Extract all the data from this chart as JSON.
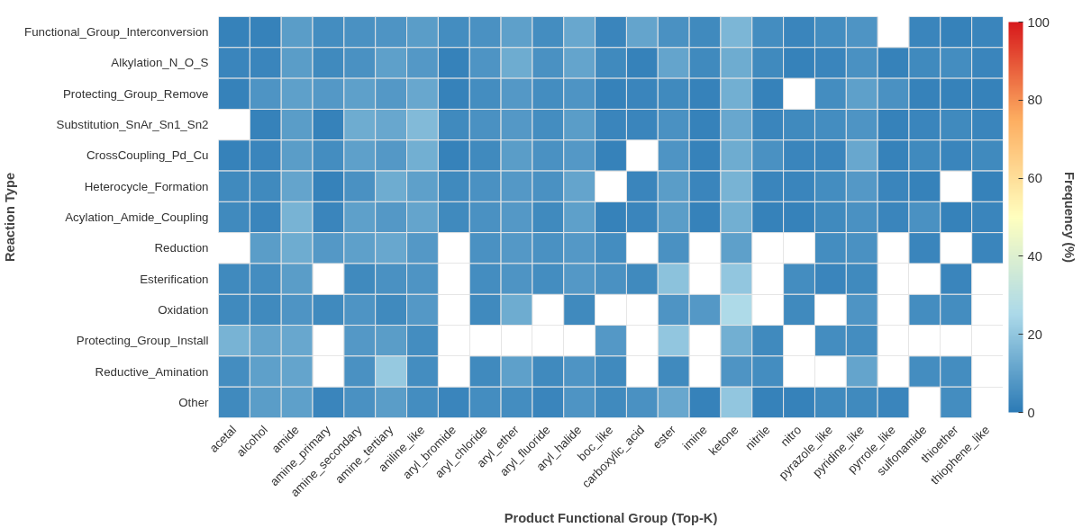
{
  "chart_data": {
    "type": "heatmap",
    "xlabel": "Product Functional Group (Top-K)",
    "ylabel": "Reaction Type",
    "clabel": "Frequency (%)",
    "categories": [
      "acetal",
      "alcohol",
      "amide",
      "amine_primary",
      "amine_secondary",
      "amine_tertiary",
      "aniline_like",
      "aryl_bromide",
      "aryl_chloride",
      "aryl_ether",
      "aryl_fluoride",
      "aryl_halide",
      "boc_like",
      "carboxylic_acid",
      "ester",
      "imine",
      "ketone",
      "nitrile",
      "nitro",
      "pyrazole_like",
      "pyridine_like",
      "pyrrole_like",
      "sulfonamide",
      "thioether",
      "thiophene_like"
    ],
    "y_categories": [
      "Functional_Group_Interconversion",
      "Alkylation_N_O_S",
      "Protecting_Group_Remove",
      "Substitution_SnAr_Sn1_Sn2",
      "CrossCoupling_Pd_Cu",
      "Heterocycle_Formation",
      "Acylation_Amide_Coupling",
      "Reduction",
      "Esterification",
      "Oxidation",
      "Protecting_Group_Install",
      "Reductive_Amination",
      "Other"
    ],
    "cells": [
      [
        2,
        2,
        9,
        5,
        6,
        7,
        9,
        5,
        6,
        10,
        5,
        12,
        3,
        11,
        6,
        4,
        16,
        5,
        3,
        5,
        7,
        null,
        3,
        2,
        3
      ],
      [
        3,
        3,
        9,
        4,
        6,
        10,
        8,
        2,
        7,
        13,
        6,
        11,
        4,
        2,
        11,
        4,
        13,
        4,
        2,
        3,
        6,
        2,
        4,
        5,
        3
      ],
      [
        2,
        7,
        10,
        8,
        10,
        8,
        12,
        2,
        5,
        8,
        5,
        7,
        2,
        3,
        4,
        2,
        14,
        2,
        null,
        5,
        10,
        6,
        2,
        2,
        2
      ],
      [
        null,
        2,
        9,
        2,
        13,
        12,
        17,
        4,
        6,
        8,
        5,
        9,
        3,
        3,
        6,
        2,
        12,
        3,
        4,
        5,
        7,
        2,
        3,
        4,
        3
      ],
      [
        2,
        3,
        9,
        5,
        10,
        8,
        14,
        2,
        4,
        9,
        6,
        8,
        2,
        null,
        7,
        2,
        13,
        6,
        3,
        3,
        12,
        2,
        4,
        3,
        4
      ],
      [
        4,
        4,
        11,
        2,
        6,
        13,
        10,
        4,
        6,
        8,
        6,
        11,
        null,
        3,
        9,
        3,
        15,
        3,
        3,
        5,
        8,
        3,
        2,
        null,
        2
      ],
      [
        4,
        3,
        15,
        3,
        10,
        8,
        11,
        4,
        6,
        8,
        4,
        10,
        2,
        3,
        9,
        2,
        14,
        2,
        2,
        4,
        6,
        3,
        6,
        2,
        3
      ],
      [
        null,
        9,
        13,
        8,
        10,
        12,
        8,
        null,
        6,
        8,
        6,
        8,
        5,
        null,
        6,
        null,
        10,
        null,
        null,
        5,
        6,
        null,
        3,
        null,
        3
      ],
      [
        4,
        5,
        9,
        null,
        4,
        6,
        7,
        null,
        5,
        7,
        5,
        8,
        6,
        4,
        19,
        null,
        20,
        null,
        5,
        3,
        4,
        null,
        null,
        3,
        null
      ],
      [
        4,
        4,
        7,
        4,
        7,
        4,
        8,
        null,
        4,
        13,
        null,
        4,
        null,
        null,
        7,
        8,
        26,
        null,
        4,
        null,
        7,
        null,
        5,
        5,
        null
      ],
      [
        15,
        11,
        12,
        null,
        8,
        9,
        5,
        null,
        null,
        null,
        null,
        null,
        8,
        null,
        20,
        null,
        14,
        4,
        null,
        5,
        5,
        null,
        null,
        null,
        null
      ],
      [
        5,
        10,
        11,
        null,
        6,
        21,
        5,
        null,
        4,
        10,
        4,
        7,
        4,
        null,
        4,
        null,
        7,
        5,
        null,
        null,
        11,
        null,
        5,
        5,
        null
      ],
      [
        4,
        9,
        10,
        3,
        6,
        9,
        5,
        3,
        5,
        5,
        3,
        7,
        4,
        6,
        12,
        2,
        20,
        2,
        2,
        4,
        4,
        3,
        null,
        5,
        null
      ]
    ],
    "clim": [
      0,
      100
    ],
    "cticks": [
      0,
      20,
      40,
      60,
      80,
      100
    ]
  }
}
